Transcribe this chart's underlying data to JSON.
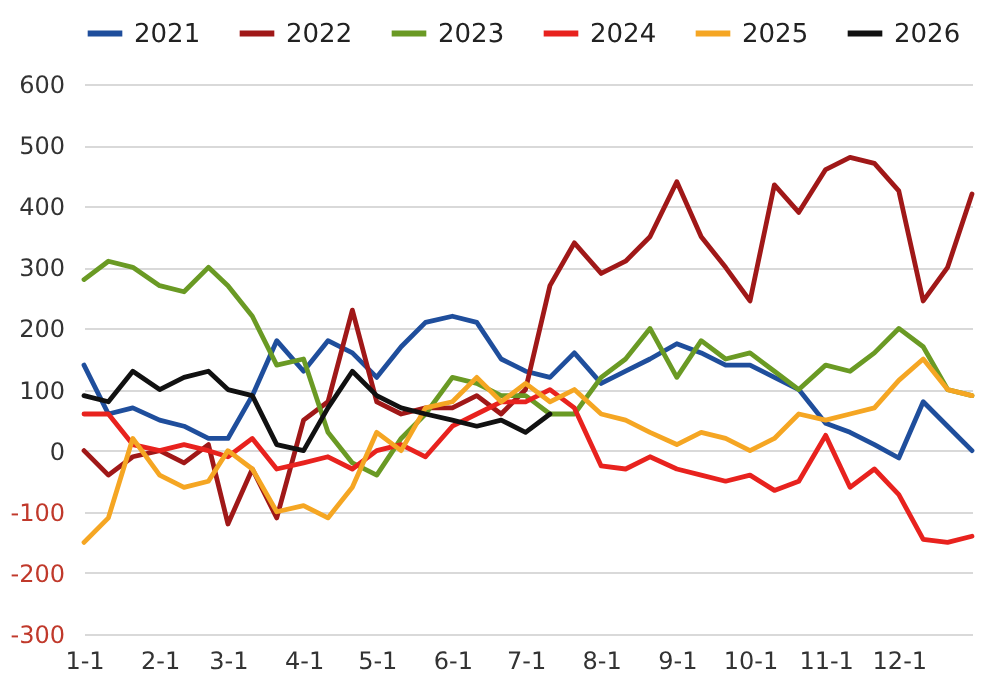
{
  "chart_data": {
    "type": "line",
    "x": [
      "--01-01",
      "--01-11",
      "--01-21",
      "--02-01",
      "--02-11",
      "--02-21",
      "--03-01",
      "--03-11",
      "--03-21",
      "--04-01",
      "--04-11",
      "--04-21",
      "--05-01",
      "--05-11",
      "--05-21",
      "--06-01",
      "--06-11",
      "--06-21",
      "--07-01",
      "--07-11",
      "--07-21",
      "--08-01",
      "--08-11",
      "--08-21",
      "--09-01",
      "--09-11",
      "--09-21",
      "--10-01",
      "--10-11",
      "--10-21",
      "--11-01",
      "--11-11",
      "--11-21",
      "--12-01",
      "--12-11",
      "--12-21",
      "--12-31"
    ],
    "series": [
      {
        "name": "2021",
        "color": "#1f4e9c",
        "values": [
          140,
          60,
          70,
          50,
          40,
          20,
          20,
          90,
          180,
          130,
          180,
          160,
          120,
          170,
          210,
          220,
          210,
          150,
          130,
          120,
          160,
          110,
          130,
          150,
          175,
          160,
          140,
          140,
          120,
          100,
          45,
          30,
          10,
          -12,
          80,
          40,
          0
        ]
      },
      {
        "name": "2022",
        "color": "#a01818",
        "values": [
          0,
          -40,
          -10,
          0,
          -20,
          10,
          -120,
          -30,
          -110,
          50,
          80,
          230,
          80,
          60,
          70,
          70,
          90,
          60,
          100,
          270,
          340,
          290,
          310,
          350,
          440,
          350,
          300,
          245,
          435,
          390,
          460,
          480,
          470,
          425,
          245,
          300,
          420
        ]
      },
      {
        "name": "2023",
        "color": "#6a9a24",
        "values": [
          280,
          310,
          300,
          270,
          260,
          300,
          270,
          220,
          140,
          150,
          30,
          -20,
          -40,
          20,
          60,
          120,
          110,
          90,
          90,
          60,
          60,
          120,
          150,
          200,
          120,
          180,
          150,
          160,
          130,
          100,
          140,
          130,
          160,
          200,
          170,
          100,
          90
        ]
      },
      {
        "name": "2024",
        "color": "#e8221e",
        "values": [
          60,
          60,
          10,
          0,
          10,
          0,
          -10,
          20,
          -30,
          -20,
          -10,
          -30,
          0,
          10,
          -10,
          40,
          60,
          80,
          80,
          100,
          70,
          -25,
          -30,
          -10,
          -30,
          -40,
          -50,
          -40,
          -65,
          -50,
          25,
          -60,
          -30,
          -72,
          -145,
          -150,
          -140
        ]
      },
      {
        "name": "2025",
        "color": "#f5a623",
        "values": [
          -150,
          -110,
          20,
          -40,
          -60,
          -50,
          0,
          -30,
          -100,
          -90,
          -110,
          -60,
          30,
          0,
          70,
          80,
          120,
          80,
          110,
          80,
          100,
          60,
          50,
          30,
          10,
          30,
          20,
          0,
          20,
          60,
          50,
          60,
          70,
          115,
          150,
          100,
          90
        ]
      },
      {
        "name": "2026",
        "color": "#111111",
        "values": [
          90,
          80,
          130,
          100,
          120,
          130,
          100,
          90,
          10,
          0,
          70,
          130,
          90,
          70,
          60,
          50,
          40,
          50,
          30,
          60,
          null,
          null,
          null,
          null,
          null,
          null,
          null,
          null,
          null,
          null,
          null,
          null,
          null,
          null,
          null,
          null,
          null
        ]
      }
    ],
    "xlim": [
      "--01-01",
      "--12-31"
    ],
    "xticks": [
      {
        "value": "--01-01",
        "label": "1-1"
      },
      {
        "value": "--02-01",
        "label": "2-1"
      },
      {
        "value": "--03-01",
        "label": "3-1"
      },
      {
        "value": "--04-01",
        "label": "4-1"
      },
      {
        "value": "--05-01",
        "label": "5-1"
      },
      {
        "value": "--06-01",
        "label": "6-1"
      },
      {
        "value": "--07-01",
        "label": "7-1"
      },
      {
        "value": "--08-01",
        "label": "8-1"
      },
      {
        "value": "--09-01",
        "label": "9-1"
      },
      {
        "value": "--10-01",
        "label": "10-1"
      },
      {
        "value": "--11-01",
        "label": "11-1"
      },
      {
        "value": "--12-01",
        "label": "12-1"
      }
    ],
    "ylim": [
      -300,
      600
    ],
    "yticks": [
      -300,
      -200,
      -100,
      0,
      100,
      200,
      300,
      400,
      500,
      600
    ],
    "grid": "y",
    "legend": "top",
    "line_style": "solid"
  }
}
